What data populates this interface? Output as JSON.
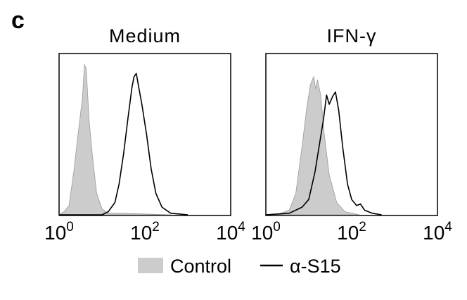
{
  "panel_label": "c",
  "chart_data": [
    {
      "type": "area",
      "title": "Medium",
      "xscale": "log",
      "xlim": [
        1,
        10000
      ],
      "xticks": [
        {
          "base": "10",
          "exp": "0"
        },
        {
          "base": "10",
          "exp": "2"
        },
        {
          "base": "10",
          "exp": "4"
        }
      ],
      "grid": false,
      "series": [
        {
          "name": "Control",
          "style": "filled",
          "color": "#cccccc",
          "points": [
            [
              1,
              0.0
            ],
            [
              1.3,
              0.02
            ],
            [
              1.7,
              0.06
            ],
            [
              2.2,
              0.28
            ],
            [
              2.7,
              0.5
            ],
            [
              3.1,
              0.64
            ],
            [
              3.5,
              0.76
            ],
            [
              3.9,
              0.98
            ],
            [
              4.3,
              0.95
            ],
            [
              5.0,
              0.62
            ],
            [
              6.0,
              0.38
            ],
            [
              7.5,
              0.14
            ],
            [
              10,
              0.04
            ],
            [
              14,
              0.01
            ],
            [
              30,
              0.01
            ],
            [
              100,
              0.005
            ],
            [
              400,
              0.0
            ]
          ]
        },
        {
          "name": "α-S15",
          "style": "line",
          "color": "#000000",
          "points": [
            [
              1,
              0.0
            ],
            [
              10,
              0.0
            ],
            [
              14,
              0.02
            ],
            [
              20,
              0.08
            ],
            [
              25,
              0.2
            ],
            [
              32,
              0.4
            ],
            [
              40,
              0.62
            ],
            [
              50,
              0.83
            ],
            [
              56,
              0.9
            ],
            [
              63,
              0.92
            ],
            [
              72,
              0.83
            ],
            [
              85,
              0.72
            ],
            [
              110,
              0.52
            ],
            [
              140,
              0.3
            ],
            [
              180,
              0.14
            ],
            [
              250,
              0.05
            ],
            [
              400,
              0.01
            ],
            [
              1000,
              0.0
            ]
          ]
        }
      ]
    },
    {
      "type": "area",
      "title": "IFN-γ",
      "xscale": "log",
      "xlim": [
        1,
        10000
      ],
      "xticks": [
        {
          "base": "10",
          "exp": "0"
        },
        {
          "base": "10",
          "exp": "2"
        },
        {
          "base": "10",
          "exp": "4"
        }
      ],
      "grid": false,
      "series": [
        {
          "name": "Control",
          "style": "filled",
          "color": "#cccccc",
          "points": [
            [
              1,
              0.0
            ],
            [
              2,
              0.005
            ],
            [
              3.5,
              0.03
            ],
            [
              5,
              0.14
            ],
            [
              7,
              0.45
            ],
            [
              9,
              0.7
            ],
            [
              11,
              0.85
            ],
            [
              13,
              0.9
            ],
            [
              14.5,
              0.82
            ],
            [
              16,
              0.88
            ],
            [
              19,
              0.78
            ],
            [
              23,
              0.52
            ],
            [
              30,
              0.26
            ],
            [
              45,
              0.08
            ],
            [
              70,
              0.02
            ],
            [
              150,
              0.0
            ]
          ]
        },
        {
          "name": "α-S15",
          "style": "line",
          "color": "#000000",
          "points": [
            [
              1,
              0.0
            ],
            [
              3.5,
              0.01
            ],
            [
              7,
              0.05
            ],
            [
              10,
              0.1
            ],
            [
              14,
              0.28
            ],
            [
              18,
              0.47
            ],
            [
              22,
              0.62
            ],
            [
              26,
              0.78
            ],
            [
              30,
              0.72
            ],
            [
              36,
              0.77
            ],
            [
              42,
              0.8
            ],
            [
              50,
              0.68
            ],
            [
              62,
              0.44
            ],
            [
              80,
              0.2
            ],
            [
              100,
              0.1
            ],
            [
              130,
              0.06
            ],
            [
              160,
              0.07
            ],
            [
              200,
              0.03
            ],
            [
              300,
              0.01
            ],
            [
              500,
              0.0
            ]
          ]
        }
      ]
    }
  ],
  "legend": [
    {
      "name": "Control",
      "marker": "filled-box"
    },
    {
      "name": "α-S15",
      "marker": "line"
    }
  ]
}
